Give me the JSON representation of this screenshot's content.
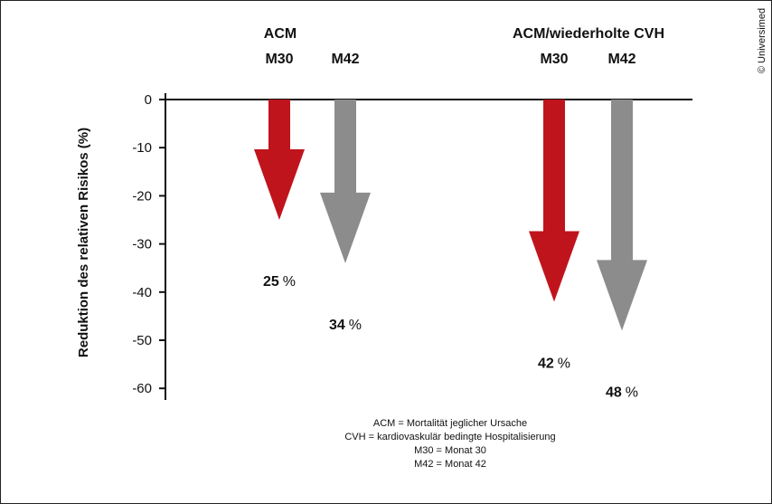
{
  "chart_data": {
    "type": "bar",
    "ylabel": "Reduktion des relativen Risikos (%)",
    "ylim": [
      -60,
      0
    ],
    "yticks": [
      "0",
      "-10",
      "-20",
      "-30",
      "-40",
      "-50",
      "-60"
    ],
    "groups": [
      {
        "title": "ACM",
        "bars": [
          {
            "label": "M30",
            "value": -25,
            "text": "25",
            "unit": "%"
          },
          {
            "label": "M42",
            "value": -34,
            "text": "34",
            "unit": "%"
          }
        ]
      },
      {
        "title": "ACM/wiederholte CVH",
        "bars": [
          {
            "label": "M30",
            "value": -42,
            "text": "42",
            "unit": "%"
          },
          {
            "label": "M42",
            "value": -48,
            "text": "48",
            "unit": "%"
          }
        ]
      }
    ],
    "colors": {
      "M30": "#c0141c",
      "M42": "#8c8c8c"
    },
    "footnotes": [
      "ACM = Mortalität jeglicher Ursache",
      "CVH = kardiovaskulär bedingte Hospitalisierung",
      "M30 = Monat 30",
      "M42 = Monat 42"
    ],
    "copyright": "© Universimed"
  }
}
